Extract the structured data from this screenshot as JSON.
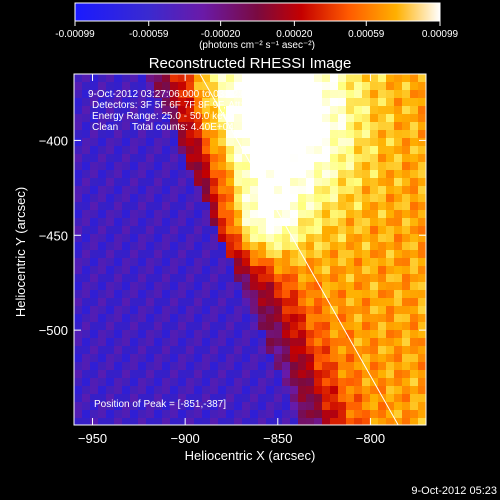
{
  "colorbar": {
    "tick_labels": [
      "-0.00099",
      "-0.00059",
      "-0.00020",
      "0.00020",
      "0.00059",
      "0.00099"
    ],
    "tick_values": [
      -0.00099,
      -0.00059,
      -0.0002,
      0.0002,
      0.00059,
      0.00099
    ],
    "range": [
      -0.00099,
      0.00099
    ],
    "units_label": "(photons cm⁻² s⁻¹ asec⁻²)"
  },
  "chart_data": {
    "type": "heatmap",
    "title": "Reconstructed RHESSI Image",
    "xlabel": "Heliocentric X (arcsec)",
    "ylabel": "Heliocentric Y (arcsec)",
    "xlim": [
      -960,
      -770
    ],
    "ylim": [
      -550,
      -365
    ],
    "x_ticks": [
      -950,
      -900,
      -850,
      -800
    ],
    "x_tick_labels": [
      "-950",
      "-900",
      "-850",
      "-800"
    ],
    "y_ticks": [
      -400,
      -450,
      -500
    ],
    "y_tick_labels": [
      "-400",
      "-450",
      "-500"
    ],
    "peak": {
      "x": -851,
      "y": -387
    },
    "limb_line": {
      "x": [
        -892,
        -785
      ],
      "y": [
        -365,
        -550
      ]
    },
    "colormap": [
      "#1a1aff",
      "#3a20c0",
      "#6a1aa8",
      "#7a0a40",
      "#c40000",
      "#ff5a00",
      "#ffb000",
      "#ffff80",
      "#ffffff"
    ],
    "annotations": [
      "9-Oct-2012 03:27:06.000 to 03:32:06.000",
      "Detectors: 3F 5F 6F 7F 8F 9F, Att:0",
      "Energy Range: 25.0 - 50.0 keV",
      "Clean     Total counts: 4.40E+04"
    ],
    "peak_label": "Position of Peak = [-851,-387]"
  },
  "footer": {
    "timestamp": "9-Oct-2012 05:23"
  }
}
